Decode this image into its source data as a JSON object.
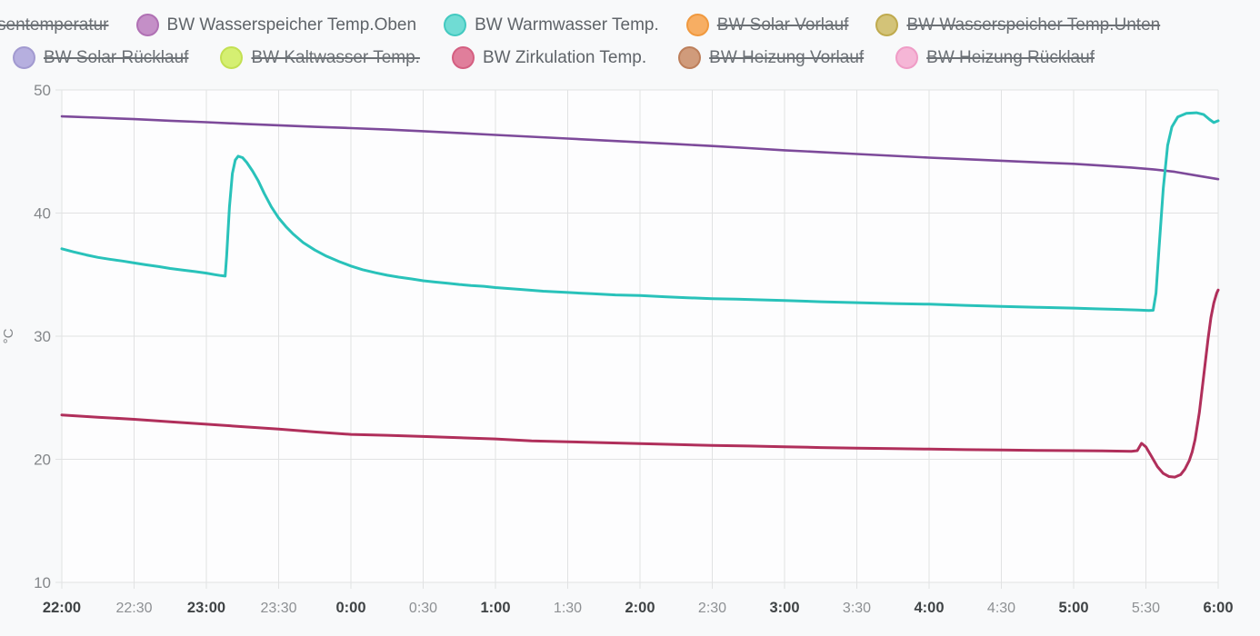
{
  "legend": {
    "rows": [
      [
        {
          "label": "sentemperatur",
          "fill": null,
          "border": null,
          "active": false,
          "cut": true
        },
        {
          "label": "BW Wasserspeicher Temp.Oben",
          "fill": "#c48fc7",
          "border": "#b071b4",
          "active": true,
          "cut": false
        },
        {
          "label": "BW Warmwasser Temp.",
          "fill": "#70dcd4",
          "border": "#43c9c0",
          "active": true,
          "cut": false
        },
        {
          "label": "BW Solar Vorlauf",
          "fill": "#f7ae63",
          "border": "#f0993f",
          "active": false,
          "cut": false
        },
        {
          "label": "BW Wasserspeicher Temp.Unten",
          "fill": "#d3c378",
          "border": "#bfaa4e",
          "active": false,
          "cut": false
        }
      ],
      [
        {
          "label": "BW Solar Rücklauf",
          "fill": "#b6afdf",
          "border": "#a29ad0",
          "active": false,
          "cut": false
        },
        {
          "label": "BW Kaltwasser Temp.",
          "fill": "#d5ef72",
          "border": "#c3e052",
          "active": false,
          "cut": false
        },
        {
          "label": "BW Zirkulation Temp.",
          "fill": "#e07e9b",
          "border": "#d45f81",
          "active": true,
          "cut": false
        },
        {
          "label": "BW Heizung Vorlauf",
          "fill": "#d09b7b",
          "border": "#bd7f5b",
          "active": false,
          "cut": false
        },
        {
          "label": "BW Heizung Rücklauf",
          "fill": "#f5b6d6",
          "border": "#ef9cc6",
          "active": false,
          "cut": false
        }
      ]
    ]
  },
  "chart_data": {
    "type": "line",
    "title": "",
    "xlabel": "",
    "ylabel": "°C",
    "ylim": [
      10,
      50
    ],
    "xlim": [
      0,
      8
    ],
    "grid": true,
    "legend_position": "top",
    "y_ticks": [
      {
        "v": 50,
        "label": "50"
      },
      {
        "v": 40,
        "label": "40"
      },
      {
        "v": 30,
        "label": "30"
      },
      {
        "v": 20,
        "label": "20"
      },
      {
        "v": 10,
        "label": "10"
      }
    ],
    "x_ticks": [
      {
        "t": 0.0,
        "label": "22:00",
        "bold": true
      },
      {
        "t": 0.5,
        "label": "22:30",
        "bold": false
      },
      {
        "t": 1.0,
        "label": "23:00",
        "bold": true
      },
      {
        "t": 1.5,
        "label": "23:30",
        "bold": false
      },
      {
        "t": 2.0,
        "label": "0:00",
        "bold": true
      },
      {
        "t": 2.5,
        "label": "0:30",
        "bold": false
      },
      {
        "t": 3.0,
        "label": "1:00",
        "bold": true
      },
      {
        "t": 3.5,
        "label": "1:30",
        "bold": false
      },
      {
        "t": 4.0,
        "label": "2:00",
        "bold": true
      },
      {
        "t": 4.5,
        "label": "2:30",
        "bold": false
      },
      {
        "t": 5.0,
        "label": "3:00",
        "bold": true
      },
      {
        "t": 5.5,
        "label": "3:30",
        "bold": false
      },
      {
        "t": 6.0,
        "label": "4:00",
        "bold": true
      },
      {
        "t": 6.5,
        "label": "4:30",
        "bold": false
      },
      {
        "t": 7.0,
        "label": "5:00",
        "bold": true
      },
      {
        "t": 7.5,
        "label": "5:30",
        "bold": false
      },
      {
        "t": 8.0,
        "label": "6:00",
        "bold": true
      }
    ],
    "series": [
      {
        "name": "BW Wasserspeicher Temp.Oben",
        "color": "#7d4a9a",
        "width": 2.6,
        "points": [
          [
            0,
            47.85
          ],
          [
            0.25,
            47.75
          ],
          [
            0.5,
            47.63
          ],
          [
            0.75,
            47.5
          ],
          [
            1,
            47.38
          ],
          [
            1.25,
            47.25
          ],
          [
            1.5,
            47.13
          ],
          [
            1.75,
            47.0
          ],
          [
            2,
            46.9
          ],
          [
            2.25,
            46.78
          ],
          [
            2.5,
            46.65
          ],
          [
            2.75,
            46.5
          ],
          [
            3,
            46.35
          ],
          [
            3.25,
            46.2
          ],
          [
            3.5,
            46.05
          ],
          [
            3.75,
            45.9
          ],
          [
            4,
            45.75
          ],
          [
            4.25,
            45.6
          ],
          [
            4.5,
            45.45
          ],
          [
            4.75,
            45.28
          ],
          [
            5,
            45.1
          ],
          [
            5.25,
            44.95
          ],
          [
            5.5,
            44.8
          ],
          [
            5.75,
            44.65
          ],
          [
            6,
            44.5
          ],
          [
            6.25,
            44.38
          ],
          [
            6.5,
            44.25
          ],
          [
            6.75,
            44.12
          ],
          [
            7,
            44.0
          ],
          [
            7.2,
            43.85
          ],
          [
            7.4,
            43.7
          ],
          [
            7.55,
            43.55
          ],
          [
            7.7,
            43.35
          ],
          [
            7.85,
            43.05
          ],
          [
            8,
            42.75
          ]
        ]
      },
      {
        "name": "BW Warmwasser Temp.",
        "color": "#29c2ba",
        "width": 3,
        "points": [
          [
            0,
            37.1
          ],
          [
            0.08,
            36.85
          ],
          [
            0.17,
            36.6
          ],
          [
            0.25,
            36.4
          ],
          [
            0.33,
            36.25
          ],
          [
            0.42,
            36.1
          ],
          [
            0.5,
            35.95
          ],
          [
            0.58,
            35.8
          ],
          [
            0.67,
            35.65
          ],
          [
            0.75,
            35.5
          ],
          [
            0.83,
            35.38
          ],
          [
            0.92,
            35.25
          ],
          [
            1,
            35.12
          ],
          [
            1.06,
            35.0
          ],
          [
            1.1,
            34.92
          ],
          [
            1.13,
            34.88
          ],
          [
            1.14,
            36.5
          ],
          [
            1.16,
            40.5
          ],
          [
            1.18,
            43.2
          ],
          [
            1.2,
            44.3
          ],
          [
            1.22,
            44.62
          ],
          [
            1.25,
            44.5
          ],
          [
            1.28,
            44.1
          ],
          [
            1.32,
            43.4
          ],
          [
            1.36,
            42.6
          ],
          [
            1.4,
            41.6
          ],
          [
            1.45,
            40.5
          ],
          [
            1.5,
            39.6
          ],
          [
            1.55,
            38.9
          ],
          [
            1.6,
            38.3
          ],
          [
            1.67,
            37.6
          ],
          [
            1.75,
            37.0
          ],
          [
            1.83,
            36.5
          ],
          [
            1.92,
            36.05
          ],
          [
            2,
            35.7
          ],
          [
            2.08,
            35.4
          ],
          [
            2.17,
            35.15
          ],
          [
            2.25,
            34.95
          ],
          [
            2.33,
            34.8
          ],
          [
            2.42,
            34.65
          ],
          [
            2.5,
            34.5
          ],
          [
            2.58,
            34.4
          ],
          [
            2.67,
            34.3
          ],
          [
            2.75,
            34.2
          ],
          [
            2.83,
            34.12
          ],
          [
            2.92,
            34.05
          ],
          [
            3,
            33.95
          ],
          [
            3.17,
            33.8
          ],
          [
            3.33,
            33.65
          ],
          [
            3.5,
            33.55
          ],
          [
            3.67,
            33.45
          ],
          [
            3.83,
            33.35
          ],
          [
            4,
            33.3
          ],
          [
            4.17,
            33.2
          ],
          [
            4.33,
            33.12
          ],
          [
            4.5,
            33.05
          ],
          [
            4.67,
            33.0
          ],
          [
            4.83,
            32.95
          ],
          [
            5,
            32.9
          ],
          [
            5.25,
            32.8
          ],
          [
            5.5,
            32.72
          ],
          [
            5.75,
            32.65
          ],
          [
            6,
            32.6
          ],
          [
            6.25,
            32.5
          ],
          [
            6.5,
            32.42
          ],
          [
            6.75,
            32.35
          ],
          [
            7,
            32.28
          ],
          [
            7.15,
            32.22
          ],
          [
            7.3,
            32.18
          ],
          [
            7.45,
            32.12
          ],
          [
            7.52,
            32.08
          ],
          [
            7.55,
            32.1
          ],
          [
            7.57,
            33.5
          ],
          [
            7.59,
            37.0
          ],
          [
            7.62,
            42.0
          ],
          [
            7.65,
            45.5
          ],
          [
            7.68,
            47.0
          ],
          [
            7.72,
            47.8
          ],
          [
            7.78,
            48.1
          ],
          [
            7.85,
            48.15
          ],
          [
            7.9,
            48.0
          ],
          [
            7.94,
            47.6
          ],
          [
            7.97,
            47.35
          ],
          [
            8,
            47.5
          ]
        ]
      },
      {
        "name": "BW Zirkulation Temp.",
        "color": "#b02f5b",
        "width": 3,
        "points": [
          [
            0,
            23.6
          ],
          [
            0.25,
            23.42
          ],
          [
            0.5,
            23.25
          ],
          [
            0.75,
            23.05
          ],
          [
            1,
            22.85
          ],
          [
            1.25,
            22.65
          ],
          [
            1.5,
            22.45
          ],
          [
            1.75,
            22.22
          ],
          [
            2,
            22.02
          ],
          [
            2.25,
            21.95
          ],
          [
            2.5,
            21.85
          ],
          [
            2.75,
            21.75
          ],
          [
            3,
            21.65
          ],
          [
            3.25,
            21.5
          ],
          [
            3.5,
            21.42
          ],
          [
            3.75,
            21.35
          ],
          [
            4,
            21.28
          ],
          [
            4.25,
            21.2
          ],
          [
            4.5,
            21.12
          ],
          [
            4.75,
            21.08
          ],
          [
            5,
            21.02
          ],
          [
            5.25,
            20.95
          ],
          [
            5.5,
            20.9
          ],
          [
            5.75,
            20.87
          ],
          [
            6,
            20.83
          ],
          [
            6.25,
            20.78
          ],
          [
            6.5,
            20.75
          ],
          [
            6.75,
            20.72
          ],
          [
            7,
            20.7
          ],
          [
            7.2,
            20.68
          ],
          [
            7.4,
            20.65
          ],
          [
            7.44,
            20.7
          ],
          [
            7.47,
            21.3
          ],
          [
            7.5,
            21.0
          ],
          [
            7.54,
            20.2
          ],
          [
            7.58,
            19.4
          ],
          [
            7.62,
            18.85
          ],
          [
            7.66,
            18.6
          ],
          [
            7.7,
            18.55
          ],
          [
            7.74,
            18.75
          ],
          [
            7.77,
            19.2
          ],
          [
            7.8,
            19.9
          ],
          [
            7.82,
            20.6
          ],
          [
            7.84,
            21.6
          ],
          [
            7.87,
            23.8
          ],
          [
            7.9,
            26.8
          ],
          [
            7.93,
            29.8
          ],
          [
            7.95,
            31.5
          ],
          [
            7.97,
            32.7
          ],
          [
            7.99,
            33.5
          ],
          [
            8,
            33.75
          ]
        ]
      }
    ]
  }
}
